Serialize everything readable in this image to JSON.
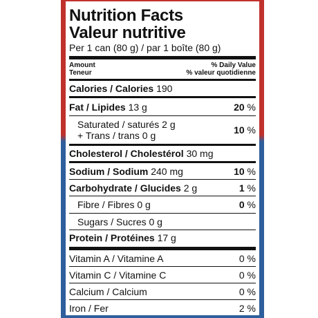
{
  "colors": {
    "top_border": "#c0312c",
    "bottom_border": "#2e5f9c",
    "text": "#111111"
  },
  "title_en": "Nutrition Facts",
  "title_fr": "Valeur nutritive",
  "serving": "Per 1 can (80 g) / par 1 boîte (80 g)",
  "header": {
    "amount": "Amount",
    "teneur": "Teneur",
    "dv": "% Daily Value",
    "dv_fr": "% valeur quotidienne"
  },
  "calories": {
    "label": "Calories / Calories",
    "value": "190"
  },
  "fat": {
    "label": "Fat / Lipides",
    "amount": "13 g",
    "pct": "20",
    "sym": "%"
  },
  "saturated": {
    "line1": "Saturated / saturés 2 g",
    "line2": "+ Trans / trans 0 g",
    "pct": "10",
    "sym": "%"
  },
  "cholesterol": {
    "label": "Cholesterol / Cholestérol",
    "amount": "30 mg"
  },
  "sodium": {
    "label": "Sodium / Sodium",
    "amount": "240 mg",
    "pct": "10",
    "sym": "%"
  },
  "carbohydrate": {
    "label": "Carbohydrate / Glucides",
    "amount": "2 g",
    "pct": "1",
    "sym": "%"
  },
  "fibre": {
    "label": "Fibre / Fibres 0 g",
    "pct": "0",
    "sym": "%"
  },
  "sugars": {
    "label": "Sugars / Sucres 0 g"
  },
  "protein": {
    "label": "Protein / Protéines",
    "amount": "17 g"
  },
  "vitamins": [
    {
      "label": "Vitamin A / Vitamine A",
      "pct": "0 %"
    },
    {
      "label": "Vitamin C / Vitamine C",
      "pct": "0 %"
    },
    {
      "label": "Calcium / Calcium",
      "pct": "0 %"
    },
    {
      "label": "Iron / Fer",
      "pct": "2 %"
    }
  ]
}
